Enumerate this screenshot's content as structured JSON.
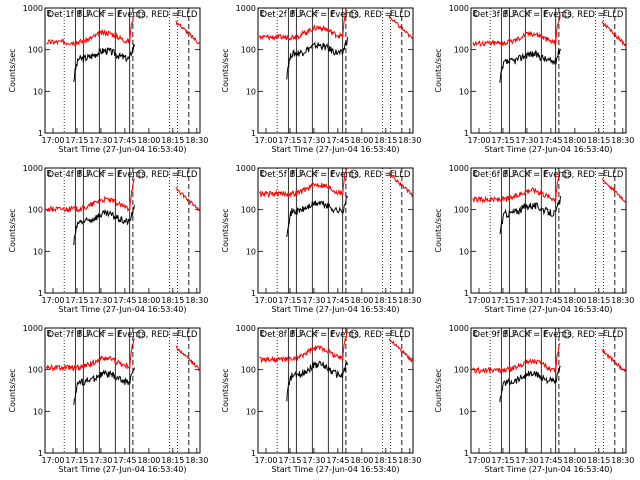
{
  "chart_data": {
    "type": "line",
    "layout": "3x3 grid",
    "ylabel": "Counts/sec",
    "xlabel": "Start Time (27-Jun-04 16:53:40)",
    "x_ticks": [
      "17:00",
      "17:15",
      "17:30",
      "17:45",
      "18:00",
      "18:15",
      "18:30"
    ],
    "x_range_min": [
      -5,
      42
    ],
    "y_ticks": [
      "1",
      "10",
      "100",
      "1000"
    ],
    "ylim": [
      1,
      1000
    ],
    "yscale": "log",
    "legend": "BLACK = Events, RED = LLD",
    "markers": {
      "E_min": 0,
      "F_min": [
        15,
        20,
        30,
        40
      ],
      "S_min": 55,
      "E2_min": 77,
      "dotted_lines_min": [
        7,
        73,
        78
      ],
      "dashed_lines_min": [
        50,
        85
      ],
      "solid_lines_min": [
        14,
        19,
        29,
        39,
        48
      ]
    },
    "panels": [
      {
        "title": "Det 1f BLACK = Events, RED = LLD",
        "events_base": 60,
        "lld_base": 190,
        "events_bump": 1.0,
        "lld_bump": 1.0
      },
      {
        "title": "Det 2f BLACK = Events, RED = LLD",
        "events_base": 80,
        "lld_base": 250,
        "events_bump": 1.0,
        "lld_bump": 1.0
      },
      {
        "title": "Det 3f BLACK = Events, RED = LLD",
        "events_base": 50,
        "lld_base": 180,
        "events_bump": 1.0,
        "lld_bump": 1.0
      },
      {
        "title": "Det 4f BLACK = Events, RED = LLD",
        "events_base": 50,
        "lld_base": 130,
        "events_bump": 1.0,
        "lld_bump": 1.0
      },
      {
        "title": "Det 5f BLACK = Events, RED = LLD",
        "events_base": 90,
        "lld_base": 300,
        "events_bump": 1.0,
        "lld_bump": 1.0
      },
      {
        "title": "Det 6f BLACK = Events, RED = LLD",
        "events_base": 80,
        "lld_base": 220,
        "events_bump": 1.0,
        "lld_bump": 1.0
      },
      {
        "title": "Det 7f BLACK = Events, RED = LLD",
        "events_base": 50,
        "lld_base": 140,
        "events_bump": 1.0,
        "lld_bump": 1.0
      },
      {
        "title": "Det 8f BLACK = Events, RED = LLD",
        "events_base": 70,
        "lld_base": 220,
        "events_bump": 1.6,
        "lld_bump": 1.3
      },
      {
        "title": "Det 9f BLACK = Events, RED = LLD",
        "events_base": 50,
        "lld_base": 120,
        "events_bump": 1.0,
        "lld_bump": 1.0
      }
    ],
    "series_colors": {
      "events": "#000000",
      "lld": "#ff0000"
    }
  }
}
